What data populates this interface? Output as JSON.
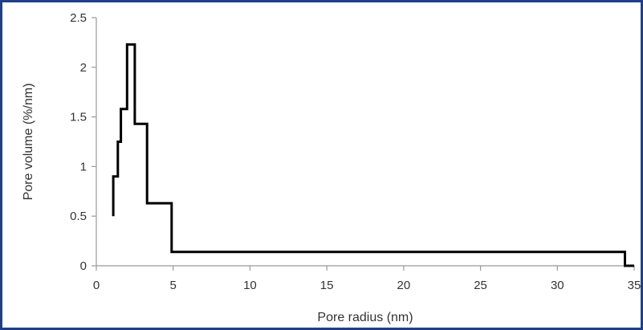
{
  "chart_data": {
    "type": "line",
    "step": true,
    "title": "",
    "xlabel": "Pore radius (nm)",
    "ylabel": "Pore volume (%/nm)",
    "xlim": [
      0,
      35
    ],
    "ylim": [
      0,
      2.5
    ],
    "x_ticks": [
      0,
      5,
      10,
      15,
      20,
      25,
      30,
      35
    ],
    "y_ticks": [
      0,
      0.5,
      1,
      1.5,
      2,
      2.5
    ],
    "x_tick_labels": [
      "0",
      "5",
      "10",
      "15",
      "20",
      "25",
      "30",
      "35"
    ],
    "y_tick_labels": [
      "0",
      "0.5",
      "1",
      "1.5",
      "2",
      "2.5"
    ],
    "grid": false,
    "legend": "none",
    "series": [
      {
        "color": "#000000",
        "x": [
          1.1,
          1.1,
          1.4,
          1.4,
          1.6,
          1.6,
          2.0,
          2.0,
          2.5,
          2.5,
          3.3,
          3.3,
          4.9,
          4.9,
          10.0,
          10.0,
          34.4,
          34.4,
          35.0
        ],
        "y": [
          0.5,
          0.9,
          0.9,
          1.25,
          1.25,
          1.58,
          1.58,
          2.23,
          2.23,
          1.43,
          1.43,
          0.63,
          0.63,
          0.14,
          0.14,
          0.14,
          0.14,
          0.0,
          0.0
        ]
      }
    ]
  }
}
